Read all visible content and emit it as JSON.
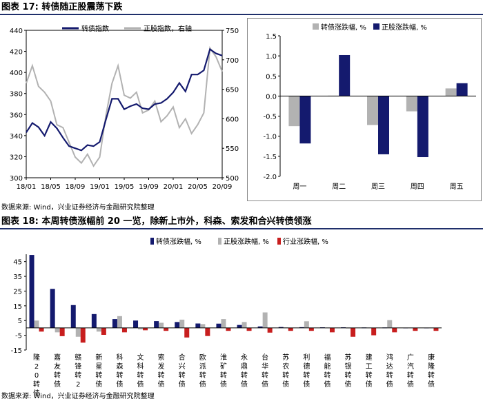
{
  "figure1": {
    "title": "图表 17:  转债随正股震荡下跌",
    "source": "数据来源: Wind，兴业证券经济与金融研究院整理"
  },
  "figure2": {
    "title": "图表 18:  本周转债涨幅前 20 一览，除新上市外，科森、索发和合兴转债领涨",
    "source": "数据来源: Wind，兴业证券经济与金融研究院整理"
  },
  "colors": {
    "navy": "#141a6e",
    "gray": "#b2b2b2",
    "red": "#c81e1e"
  },
  "chart_data": [
    {
      "type": "line",
      "legend": [
        "转债指数",
        "正股指数，右轴"
      ],
      "x_ticks": [
        "18/01",
        "18/05",
        "18/09",
        "19/01",
        "19/05",
        "19/09",
        "20/01",
        "20/05",
        "20/09"
      ],
      "y_left": {
        "range": [
          300,
          440
        ],
        "ticks": [
          300,
          320,
          340,
          360,
          380,
          400,
          420,
          440
        ]
      },
      "y_right": {
        "range": [
          500,
          750
        ],
        "ticks": [
          500,
          550,
          600,
          650,
          700,
          750
        ]
      },
      "series": [
        {
          "name": "转债指数",
          "axis": "left",
          "x": [
            "18/01",
            "18/02",
            "18/03",
            "18/04",
            "18/05",
            "18/06",
            "18/07",
            "18/08",
            "18/09",
            "18/10",
            "18/11",
            "18/12",
            "19/01",
            "19/02",
            "19/03",
            "19/04",
            "19/05",
            "19/06",
            "19/07",
            "19/08",
            "19/09",
            "19/10",
            "19/11",
            "19/12",
            "20/01",
            "20/02",
            "20/03",
            "20/04",
            "20/05",
            "20/06",
            "20/07",
            "20/08",
            "20/09"
          ],
          "values": [
            343,
            352,
            348,
            340,
            353,
            347,
            338,
            330,
            328,
            326,
            331,
            330,
            334,
            355,
            375,
            375,
            365,
            368,
            370,
            366,
            365,
            370,
            371,
            375,
            381,
            390,
            382,
            398,
            398,
            402,
            422,
            418,
            416
          ]
        },
        {
          "name": "正股指数，右轴",
          "axis": "right",
          "x": [
            "18/01",
            "18/02",
            "18/03",
            "18/04",
            "18/05",
            "18/06",
            "18/07",
            "18/08",
            "18/09",
            "18/10",
            "18/11",
            "18/12",
            "19/01",
            "19/02",
            "19/03",
            "19/04",
            "19/05",
            "19/06",
            "19/07",
            "19/08",
            "19/09",
            "19/10",
            "19/11",
            "19/12",
            "20/01",
            "20/02",
            "20/03",
            "20/04",
            "20/05",
            "20/06",
            "20/07",
            "20/08",
            "20/09"
          ],
          "values": [
            660,
            690,
            655,
            645,
            630,
            590,
            585,
            560,
            535,
            525,
            540,
            520,
            535,
            605,
            660,
            690,
            640,
            635,
            645,
            610,
            615,
            630,
            595,
            605,
            620,
            585,
            600,
            575,
            590,
            610,
            720,
            705,
            680
          ]
        }
      ]
    },
    {
      "type": "bar",
      "categories": [
        "周一",
        "周二",
        "周三",
        "周四",
        "周五"
      ],
      "ylim": [
        -2.0,
        1.5
      ],
      "y_ticks": [
        -2.0,
        -1.5,
        -1.0,
        -0.5,
        0.0,
        0.5,
        1.0,
        1.5
      ],
      "series": [
        {
          "name": "转债涨跌幅, %",
          "values": [
            -0.75,
            0.01,
            -0.72,
            -0.38,
            0.19
          ]
        },
        {
          "name": "正股涨跌幅, %",
          "values": [
            -1.18,
            1.02,
            -1.45,
            -1.52,
            0.32
          ]
        }
      ]
    },
    {
      "type": "bar",
      "categories": [
        "隆20转债",
        "嘉友转债",
        "赣锋转2",
        "新星转债",
        "科森转债",
        "文科转债",
        "索发转债",
        "合兴转债",
        "欧派转债",
        "淮矿转债",
        "永鼎转债",
        "台华转债",
        "苏农转债",
        "利德转债",
        "福能转债",
        "苏银转债",
        "建工转债",
        "鸿达转债",
        "广汽转债",
        "康隆转债"
      ],
      "ylim": [
        -15,
        50
      ],
      "y_ticks": [
        -15,
        -5,
        5,
        15,
        25,
        35,
        45
      ],
      "series": [
        {
          "name": "转债涨跌幅, %",
          "values": [
            49.5,
            26.5,
            15.5,
            9.4,
            6.0,
            5.0,
            4.6,
            4.0,
            3.0,
            2.9,
            2.0,
            1.0,
            0.6,
            0.5,
            0.4,
            0.4,
            0.3,
            0.3,
            0.2,
            0.2
          ]
        },
        {
          "name": "正股涨跌幅, %",
          "values": [
            5.0,
            -3.0,
            -6.0,
            -2.5,
            8.0,
            -1.0,
            3.5,
            5.6,
            2.6,
            6.0,
            4.0,
            10.5,
            0.3,
            4.5,
            0.2,
            0.1,
            0.2,
            5.3,
            0.2,
            0.2
          ]
        },
        {
          "name": "行业涨跌幅, %",
          "values": [
            -2.5,
            -5.6,
            -10.0,
            -4.7,
            -3.0,
            -1.6,
            -2.0,
            -6.5,
            -5.5,
            -2.0,
            -2.0,
            -3.2,
            -2.0,
            -2.0,
            -3.0,
            -6.0,
            -5.0,
            -3.0,
            -2.0,
            -2.0
          ]
        }
      ]
    }
  ]
}
